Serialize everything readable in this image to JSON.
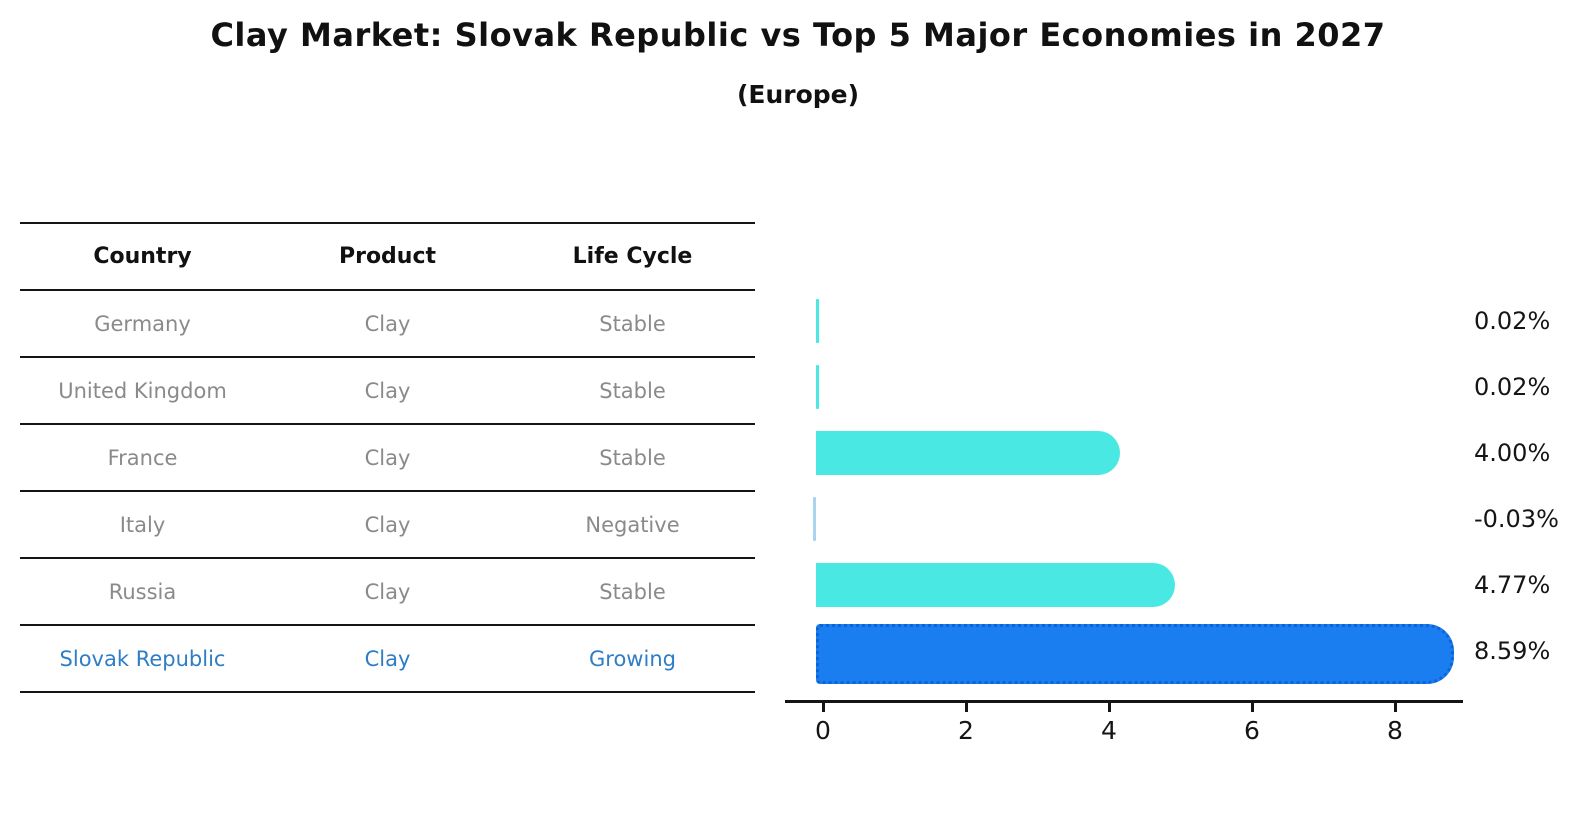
{
  "title": "Clay Market: Slovak Republic vs Top 5 Major Economies in 2027",
  "subtitle": "(Europe)",
  "table": {
    "headers": [
      "Country",
      "Product",
      "Life Cycle"
    ],
    "rows": [
      {
        "country": "Germany",
        "product": "Clay",
        "life_cycle": "Stable"
      },
      {
        "country": "United Kingdom",
        "product": "Clay",
        "life_cycle": "Stable"
      },
      {
        "country": "France",
        "product": "Clay",
        "life_cycle": "Stable"
      },
      {
        "country": "Italy",
        "product": "Clay",
        "life_cycle": "Negative"
      },
      {
        "country": "Russia",
        "product": "Clay",
        "life_cycle": "Stable"
      },
      {
        "country": "Slovak Republic",
        "product": "Clay",
        "life_cycle": "Growing"
      }
    ],
    "highlight_row_index": 5
  },
  "chart_data": {
    "type": "bar",
    "orientation": "horizontal",
    "title": "Clay Market: Slovak Republic vs Top 5 Major Economies in 2027 (Europe)",
    "categories": [
      "Germany",
      "United Kingdom",
      "France",
      "Italy",
      "Russia",
      "Slovak Republic"
    ],
    "values": [
      0.02,
      0.02,
      4.0,
      -0.03,
      4.77,
      8.59
    ],
    "value_labels": [
      "0.02%",
      "0.02%",
      "4.00%",
      "-0.03%",
      "4.77%",
      "8.59%"
    ],
    "xticks": [
      0,
      2,
      4,
      6,
      8
    ],
    "xlim": [
      -0.5,
      9.1
    ],
    "grid": false,
    "legend_position": "none",
    "bar_colors": [
      "#49e8e2",
      "#49e8e2",
      "#49e8e2",
      "#aad4ee",
      "#49e8e2",
      "#1a7df0"
    ],
    "highlight_index": 5
  },
  "colors": {
    "accent_cyan": "#49e8e2",
    "accent_blue": "#1a7df0",
    "highlight_border_blue": "#0c64d6",
    "negative_bar_blue": "#aad4ee",
    "row_text_gray": "#8a8a8a",
    "highlight_text_blue": "#2e7dc6",
    "heading_text": "#111111"
  }
}
